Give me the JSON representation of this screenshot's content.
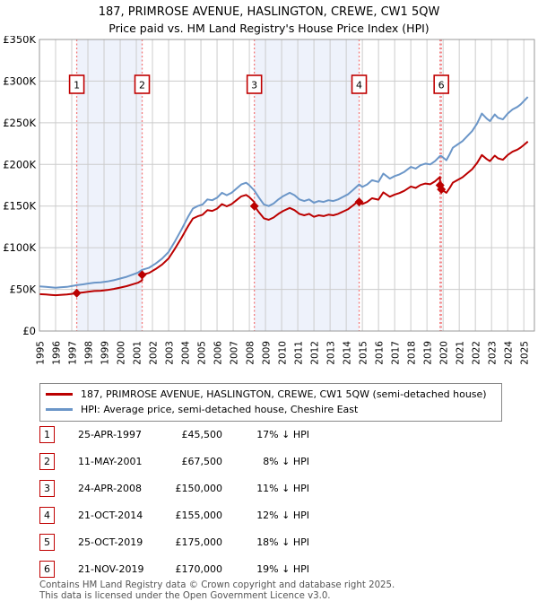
{
  "title": {
    "line1": "187, PRIMROSE AVENUE, HASLINGTON, CREWE, CW1 5QW",
    "line2": "Price paid vs. HM Land Registry's House Price Index (HPI)"
  },
  "legend": {
    "property": "187, PRIMROSE AVENUE, HASLINGTON, CREWE, CW1 5QW (semi-detached house)",
    "hpi": "HPI: Average price, semi-detached house, Cheshire East"
  },
  "chart_data": {
    "type": "line",
    "title": "187, PRIMROSE AVENUE, HASLINGTON, CREWE, CW1 5QW",
    "subtitle": "Price paid vs. HM Land Registry's House Price Index (HPI)",
    "units": "values in thousands of GBP",
    "xlim": [
      1995,
      2025.35
    ],
    "ylim": [
      0,
      350
    ],
    "grid": true,
    "legend_position": "bottom",
    "y_ticks": [
      {
        "value": 0,
        "label": "£0"
      },
      {
        "value": 50,
        "label": "£50K"
      },
      {
        "value": 100,
        "label": "£100K"
      },
      {
        "value": 150,
        "label": "£150K"
      },
      {
        "value": 200,
        "label": "£200K"
      },
      {
        "value": 250,
        "label": "£250K"
      },
      {
        "value": 300,
        "label": "£300K"
      },
      {
        "value": 350,
        "label": "£350K"
      }
    ],
    "x_tick_years": [
      1995,
      1996,
      1997,
      1998,
      1999,
      2000,
      2001,
      2002,
      2003,
      2004,
      2005,
      2006,
      2007,
      2008,
      2009,
      2010,
      2011,
      2012,
      2013,
      2014,
      2015,
      2016,
      2017,
      2018,
      2019,
      2020,
      2021,
      2022,
      2023,
      2024,
      2025
    ],
    "shaded_bands": [
      [
        1997.31,
        2001.36
      ],
      [
        2008.31,
        2014.8
      ],
      [
        2019.81,
        2019.89
      ]
    ],
    "sale_markers": [
      {
        "label": "1",
        "year": 1997.31,
        "price_k": 45.5,
        "show_box": true
      },
      {
        "label": "2",
        "year": 2001.36,
        "price_k": 67.5,
        "show_box": true
      },
      {
        "label": "3",
        "year": 2008.31,
        "price_k": 150,
        "show_box": true
      },
      {
        "label": "4",
        "year": 2014.8,
        "price_k": 155,
        "show_box": true
      },
      {
        "label": "5",
        "year": 2019.81,
        "price_k": 175,
        "show_box": false
      },
      {
        "label": "6",
        "year": 2019.89,
        "price_k": 170,
        "show_box": true
      }
    ],
    "series": [
      {
        "name": "187, PRIMROSE AVENUE, HASLINGTON, CREWE, CW1 5QW (semi-detached house)",
        "color": "#bb0000",
        "points": [
          [
            1995.0,
            44.3
          ],
          [
            1995.4,
            43.8
          ],
          [
            1995.7,
            43.4
          ],
          [
            1996.0,
            43.0
          ],
          [
            1996.3,
            43.4
          ],
          [
            1996.7,
            43.8
          ],
          [
            1997.0,
            44.6
          ],
          [
            1997.31,
            45.5
          ],
          [
            1997.7,
            46.3
          ],
          [
            1998.0,
            47.2
          ],
          [
            1998.4,
            48.0
          ],
          [
            1998.8,
            48.4
          ],
          [
            1999.2,
            49.2
          ],
          [
            1999.6,
            50.5
          ],
          [
            2000.0,
            52.1
          ],
          [
            2000.4,
            53.8
          ],
          [
            2000.8,
            56.2
          ],
          [
            2001.1,
            57.9
          ],
          [
            2001.36,
            60.8
          ],
          [
            2001.36,
            67.5
          ],
          [
            2001.8,
            69.8
          ],
          [
            2002.2,
            74.4
          ],
          [
            2002.6,
            79.9
          ],
          [
            2003.0,
            87.2
          ],
          [
            2003.4,
            99.2
          ],
          [
            2003.8,
            112.0
          ],
          [
            2004.2,
            125.8
          ],
          [
            2004.5,
            135.0
          ],
          [
            2004.8,
            137.7
          ],
          [
            2005.1,
            139.6
          ],
          [
            2005.4,
            145.1
          ],
          [
            2005.7,
            144.2
          ],
          [
            2006.0,
            146.9
          ],
          [
            2006.3,
            152.4
          ],
          [
            2006.6,
            149.7
          ],
          [
            2006.9,
            152.4
          ],
          [
            2007.2,
            157.0
          ],
          [
            2007.5,
            161.6
          ],
          [
            2007.8,
            163.4
          ],
          [
            2008.0,
            160.7
          ],
          [
            2008.31,
            154.7
          ],
          [
            2008.31,
            150.0
          ],
          [
            2008.6,
            142.4
          ],
          [
            2008.9,
            135.3
          ],
          [
            2009.2,
            133.5
          ],
          [
            2009.5,
            136.2
          ],
          [
            2009.8,
            140.6
          ],
          [
            2010.1,
            144.2
          ],
          [
            2010.5,
            147.8
          ],
          [
            2010.8,
            145.1
          ],
          [
            2011.1,
            140.6
          ],
          [
            2011.4,
            138.9
          ],
          [
            2011.7,
            140.6
          ],
          [
            2012.0,
            137.1
          ],
          [
            2012.3,
            138.9
          ],
          [
            2012.6,
            138.0
          ],
          [
            2012.9,
            139.7
          ],
          [
            2013.2,
            138.9
          ],
          [
            2013.5,
            140.6
          ],
          [
            2013.8,
            143.3
          ],
          [
            2014.1,
            146.0
          ],
          [
            2014.4,
            150.4
          ],
          [
            2014.8,
            156.7
          ],
          [
            2014.8,
            155.0
          ],
          [
            2015.0,
            152.4
          ],
          [
            2015.3,
            155.0
          ],
          [
            2015.6,
            159.4
          ],
          [
            2016.0,
            157.7
          ],
          [
            2016.3,
            166.5
          ],
          [
            2016.7,
            161.2
          ],
          [
            2017.0,
            163.8
          ],
          [
            2017.3,
            165.6
          ],
          [
            2017.6,
            168.3
          ],
          [
            2018.0,
            173.5
          ],
          [
            2018.3,
            171.8
          ],
          [
            2018.6,
            175.3
          ],
          [
            2018.9,
            177.1
          ],
          [
            2019.2,
            176.2
          ],
          [
            2019.5,
            179.7
          ],
          [
            2019.81,
            185.0
          ],
          [
            2019.81,
            175.0
          ],
          [
            2019.89,
            175.4
          ],
          [
            2019.89,
            170.0
          ],
          [
            2020.2,
            166.0
          ],
          [
            2020.4,
            171.6
          ],
          [
            2020.6,
            178.1
          ],
          [
            2020.9,
            181.4
          ],
          [
            2021.2,
            184.6
          ],
          [
            2021.5,
            189.4
          ],
          [
            2021.8,
            194.3
          ],
          [
            2022.1,
            201.6
          ],
          [
            2022.4,
            211.3
          ],
          [
            2022.7,
            206.4
          ],
          [
            2022.9,
            204.0
          ],
          [
            2023.2,
            210.5
          ],
          [
            2023.4,
            207.3
          ],
          [
            2023.7,
            205.6
          ],
          [
            2024.0,
            211.3
          ],
          [
            2024.3,
            215.3
          ],
          [
            2024.6,
            217.8
          ],
          [
            2024.8,
            220.2
          ],
          [
            2025.0,
            223.4
          ],
          [
            2025.25,
            227.5
          ]
        ]
      },
      {
        "name": "HPI: Average price, semi-detached house, Cheshire East",
        "color": "#6b96c8",
        "points": [
          [
            1995.0,
            53.5
          ],
          [
            1995.4,
            53.0
          ],
          [
            1995.7,
            52.5
          ],
          [
            1996.0,
            52.0
          ],
          [
            1996.3,
            52.5
          ],
          [
            1996.7,
            53.0
          ],
          [
            1997.0,
            54.0
          ],
          [
            1997.31,
            55.0
          ],
          [
            1997.7,
            56.0
          ],
          [
            1998.0,
            57.0
          ],
          [
            1998.4,
            58.0
          ],
          [
            1998.8,
            58.5
          ],
          [
            1999.2,
            59.5
          ],
          [
            1999.6,
            61.0
          ],
          [
            2000.0,
            63.0
          ],
          [
            2000.4,
            65.0
          ],
          [
            2000.8,
            68.0
          ],
          [
            2001.1,
            70.0
          ],
          [
            2001.36,
            73.5
          ],
          [
            2001.8,
            76.0
          ],
          [
            2002.2,
            81.0
          ],
          [
            2002.6,
            87.0
          ],
          [
            2003.0,
            95.0
          ],
          [
            2003.4,
            108.0
          ],
          [
            2003.8,
            122.0
          ],
          [
            2004.2,
            137.0
          ],
          [
            2004.5,
            147.0
          ],
          [
            2004.8,
            150.0
          ],
          [
            2005.1,
            152.0
          ],
          [
            2005.4,
            158.0
          ],
          [
            2005.7,
            157.0
          ],
          [
            2006.0,
            160.0
          ],
          [
            2006.3,
            166.0
          ],
          [
            2006.6,
            163.0
          ],
          [
            2006.9,
            166.0
          ],
          [
            2007.2,
            171.0
          ],
          [
            2007.5,
            176.0
          ],
          [
            2007.8,
            178.0
          ],
          [
            2008.0,
            175.0
          ],
          [
            2008.31,
            168.5
          ],
          [
            2008.6,
            160.0
          ],
          [
            2008.9,
            152.0
          ],
          [
            2009.2,
            150.0
          ],
          [
            2009.5,
            153.0
          ],
          [
            2009.8,
            158.0
          ],
          [
            2010.1,
            162.0
          ],
          [
            2010.5,
            166.0
          ],
          [
            2010.8,
            163.0
          ],
          [
            2011.1,
            158.0
          ],
          [
            2011.4,
            156.0
          ],
          [
            2011.7,
            158.0
          ],
          [
            2012.0,
            154.0
          ],
          [
            2012.3,
            156.0
          ],
          [
            2012.6,
            155.0
          ],
          [
            2012.9,
            157.0
          ],
          [
            2013.2,
            156.0
          ],
          [
            2013.5,
            158.0
          ],
          [
            2013.8,
            161.0
          ],
          [
            2014.1,
            164.0
          ],
          [
            2014.4,
            169.0
          ],
          [
            2014.8,
            176.0
          ],
          [
            2015.0,
            173.0
          ],
          [
            2015.3,
            176.0
          ],
          [
            2015.6,
            181.0
          ],
          [
            2016.0,
            179.0
          ],
          [
            2016.3,
            189.0
          ],
          [
            2016.7,
            183.0
          ],
          [
            2017.0,
            186.0
          ],
          [
            2017.3,
            188.0
          ],
          [
            2017.6,
            191.0
          ],
          [
            2018.0,
            197.0
          ],
          [
            2018.3,
            195.0
          ],
          [
            2018.6,
            199.0
          ],
          [
            2018.9,
            201.0
          ],
          [
            2019.2,
            200.0
          ],
          [
            2019.5,
            204.0
          ],
          [
            2019.81,
            210.0
          ],
          [
            2019.89,
            210.0
          ],
          [
            2020.2,
            205.0
          ],
          [
            2020.4,
            212.0
          ],
          [
            2020.6,
            220.0
          ],
          [
            2020.9,
            224.0
          ],
          [
            2021.2,
            228.0
          ],
          [
            2021.5,
            234.0
          ],
          [
            2021.8,
            240.0
          ],
          [
            2022.1,
            249.0
          ],
          [
            2022.4,
            261.0
          ],
          [
            2022.7,
            255.0
          ],
          [
            2022.9,
            252.0
          ],
          [
            2023.2,
            260.0
          ],
          [
            2023.4,
            256.0
          ],
          [
            2023.7,
            254.0
          ],
          [
            2024.0,
            261.0
          ],
          [
            2024.3,
            266.0
          ],
          [
            2024.6,
            269.0
          ],
          [
            2024.8,
            272.0
          ],
          [
            2025.0,
            276.0
          ],
          [
            2025.25,
            281.0
          ]
        ]
      }
    ],
    "colors": {
      "band": "#eef2fb",
      "grid": "#cccccc",
      "border": "#999999",
      "dotted_sale_line": "#f47c7c",
      "sale_box_border": "#c00000",
      "property_line": "#bb0000",
      "hpi_line": "#6b96c8"
    }
  },
  "table": {
    "rows": [
      {
        "num": "1",
        "date": "25-APR-1997",
        "price": "£45,500",
        "vs_hpi": "17% ↓ HPI"
      },
      {
        "num": "2",
        "date": "11-MAY-2001",
        "price": "£67,500",
        "vs_hpi": "8% ↓ HPI"
      },
      {
        "num": "3",
        "date": "24-APR-2008",
        "price": "£150,000",
        "vs_hpi": "11% ↓ HPI"
      },
      {
        "num": "4",
        "date": "21-OCT-2014",
        "price": "£155,000",
        "vs_hpi": "12% ↓ HPI"
      },
      {
        "num": "5",
        "date": "25-OCT-2019",
        "price": "£175,000",
        "vs_hpi": "18% ↓ HPI"
      },
      {
        "num": "6",
        "date": "21-NOV-2019",
        "price": "£170,000",
        "vs_hpi": "19% ↓ HPI"
      }
    ]
  },
  "footer": {
    "line1": "Contains HM Land Registry data © Crown copyright and database right 2025.",
    "line2": "This data is licensed under the Open Government Licence v3.0."
  }
}
